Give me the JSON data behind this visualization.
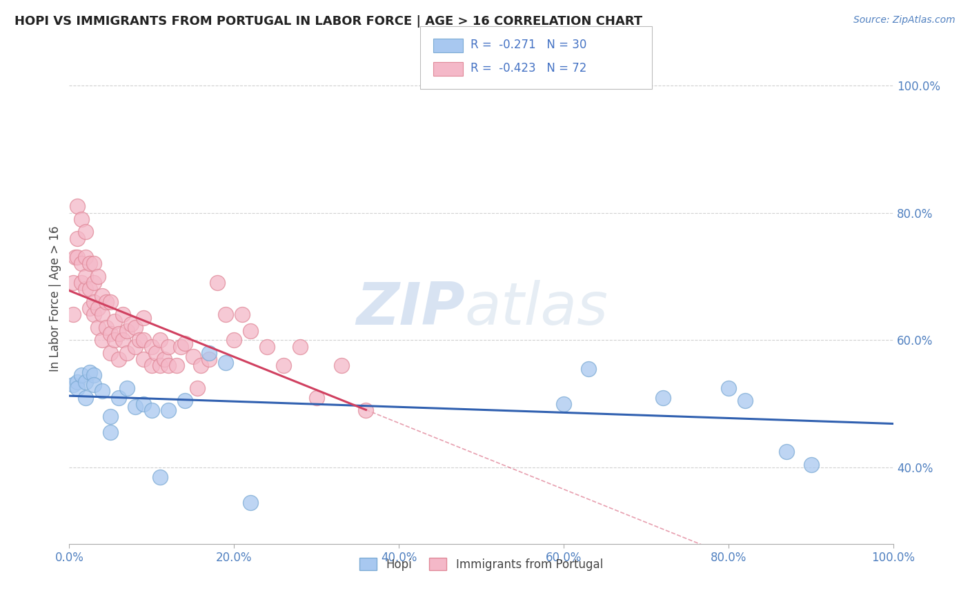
{
  "title": "HOPI VS IMMIGRANTS FROM PORTUGAL IN LABOR FORCE | AGE > 16 CORRELATION CHART",
  "source_text": "Source: ZipAtlas.com",
  "ylabel": "In Labor Force | Age > 16",
  "xlim": [
    0.0,
    1.0
  ],
  "ylim": [
    0.28,
    1.05
  ],
  "x_tick_labels": [
    "0.0%",
    "20.0%",
    "40.0%",
    "60.0%",
    "80.0%",
    "100.0%"
  ],
  "x_tick_vals": [
    0.0,
    0.2,
    0.4,
    0.6,
    0.8,
    1.0
  ],
  "y_tick_labels": [
    "40.0%",
    "60.0%",
    "80.0%",
    "100.0%"
  ],
  "y_tick_vals": [
    0.4,
    0.6,
    0.8,
    1.0
  ],
  "hopi_color": "#a8c8f0",
  "portugal_color": "#f4b8c8",
  "hopi_edge_color": "#7baad4",
  "portugal_edge_color": "#e08898",
  "hopi_line_color": "#3060b0",
  "portugal_line_color": "#d04060",
  "legend_R_hopi": "R = -0.271",
  "legend_N_hopi": "N = 30",
  "legend_R_portugal": "R = -0.423",
  "legend_N_portugal": "N = 72",
  "watermark_zip": "ZIP",
  "watermark_atlas": "atlas",
  "hopi_scatter_x": [
    0.005,
    0.01,
    0.01,
    0.015,
    0.02,
    0.02,
    0.025,
    0.03,
    0.03,
    0.04,
    0.05,
    0.05,
    0.06,
    0.07,
    0.08,
    0.09,
    0.1,
    0.11,
    0.12,
    0.14,
    0.17,
    0.19,
    0.22,
    0.6,
    0.63,
    0.72,
    0.8,
    0.82,
    0.87,
    0.9
  ],
  "hopi_scatter_y": [
    0.53,
    0.535,
    0.525,
    0.545,
    0.535,
    0.51,
    0.55,
    0.545,
    0.53,
    0.52,
    0.48,
    0.455,
    0.51,
    0.525,
    0.495,
    0.5,
    0.49,
    0.385,
    0.49,
    0.505,
    0.58,
    0.565,
    0.345,
    0.5,
    0.555,
    0.51,
    0.525,
    0.505,
    0.425,
    0.405
  ],
  "portugal_scatter_x": [
    0.005,
    0.005,
    0.007,
    0.01,
    0.01,
    0.01,
    0.015,
    0.015,
    0.015,
    0.02,
    0.02,
    0.02,
    0.02,
    0.025,
    0.025,
    0.025,
    0.03,
    0.03,
    0.03,
    0.03,
    0.035,
    0.035,
    0.035,
    0.04,
    0.04,
    0.04,
    0.045,
    0.045,
    0.05,
    0.05,
    0.05,
    0.055,
    0.055,
    0.06,
    0.06,
    0.065,
    0.065,
    0.07,
    0.07,
    0.075,
    0.08,
    0.08,
    0.085,
    0.09,
    0.09,
    0.09,
    0.1,
    0.1,
    0.105,
    0.11,
    0.11,
    0.115,
    0.12,
    0.12,
    0.13,
    0.135,
    0.14,
    0.15,
    0.155,
    0.16,
    0.17,
    0.18,
    0.19,
    0.2,
    0.21,
    0.22,
    0.24,
    0.26,
    0.28,
    0.3,
    0.33,
    0.36
  ],
  "portugal_scatter_y": [
    0.64,
    0.69,
    0.73,
    0.73,
    0.76,
    0.81,
    0.69,
    0.72,
    0.79,
    0.68,
    0.7,
    0.73,
    0.77,
    0.65,
    0.68,
    0.72,
    0.64,
    0.66,
    0.69,
    0.72,
    0.62,
    0.65,
    0.7,
    0.6,
    0.64,
    0.67,
    0.62,
    0.66,
    0.58,
    0.61,
    0.66,
    0.6,
    0.63,
    0.57,
    0.61,
    0.6,
    0.64,
    0.58,
    0.615,
    0.625,
    0.59,
    0.62,
    0.6,
    0.57,
    0.6,
    0.635,
    0.56,
    0.59,
    0.58,
    0.56,
    0.6,
    0.57,
    0.56,
    0.59,
    0.56,
    0.59,
    0.595,
    0.575,
    0.525,
    0.56,
    0.57,
    0.69,
    0.64,
    0.6,
    0.64,
    0.615,
    0.59,
    0.56,
    0.59,
    0.51,
    0.56,
    0.49
  ]
}
